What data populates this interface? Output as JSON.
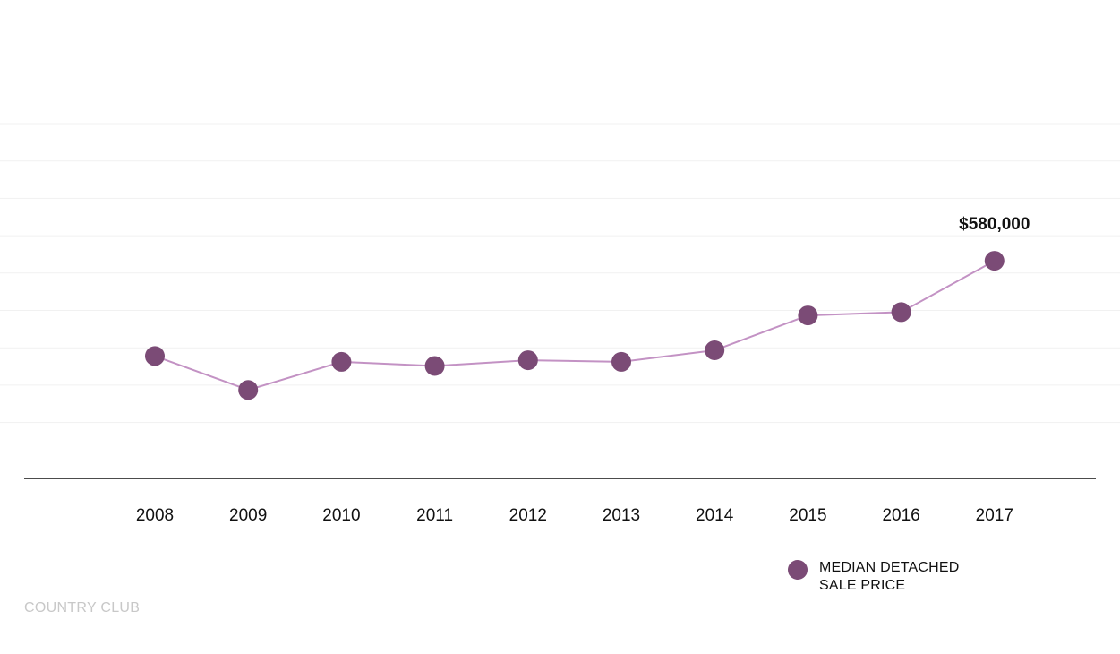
{
  "chart_data": {
    "type": "line",
    "categories": [
      "2008",
      "2009",
      "2010",
      "2011",
      "2012",
      "2013",
      "2014",
      "2015",
      "2016",
      "2017"
    ],
    "series": [
      {
        "name": "MEDIAN DETACHED SALE PRICE",
        "values": [
          465000,
          424000,
          458000,
          453000,
          460000,
          458000,
          472000,
          514000,
          518000,
          580000
        ],
        "color": "#7b4b76",
        "line_color": "#c392c4"
      }
    ],
    "annotations": [
      {
        "category": "2017",
        "label": "$580,000"
      }
    ],
    "ylim": [
      340000,
      790000
    ],
    "grid": true,
    "legend_placement": "bottom-right"
  },
  "footer": {
    "label": "COUNTRY CLUB"
  }
}
